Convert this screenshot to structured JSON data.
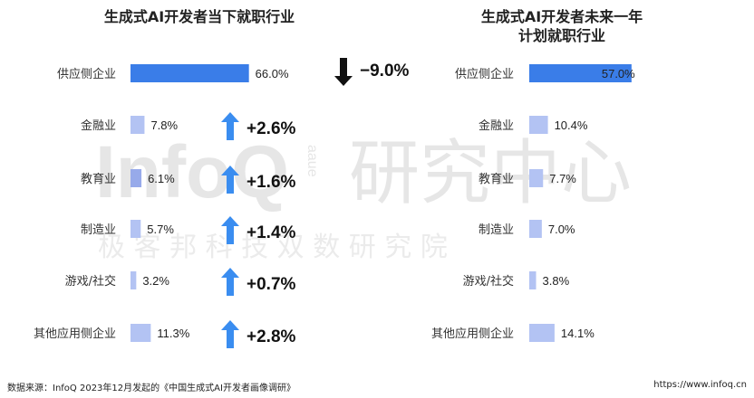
{
  "chart_data": [
    {
      "type": "bar",
      "title": "生成式AI开发者当下就职行业",
      "categories": [
        "供应侧企业",
        "金融业",
        "教育业",
        "制造业",
        "游戏/社交",
        "其他应用侧企业"
      ],
      "values": [
        66.0,
        7.8,
        6.1,
        5.7,
        3.2,
        11.3
      ],
      "value_labels": [
        "66.0%",
        "7.8%",
        "6.1%",
        "5.7%",
        "3.2%",
        "11.3%"
      ],
      "change_labels": [
        "−9.0%",
        "+2.6%",
        "+1.6%",
        "+1.4%",
        "+0.7%",
        "+2.8%"
      ],
      "change_direction": [
        "down",
        "up",
        "up",
        "up",
        "up",
        "up"
      ],
      "colors": {
        "highlight": "#3a7de8",
        "bar": "#b3c3f3",
        "bar_mid": "#97aaea",
        "arrow_up": "#3a8df0",
        "arrow_down": "#111111"
      }
    },
    {
      "type": "bar",
      "title": "生成式AI开发者未来一年计划就职行业",
      "categories": [
        "供应侧企业",
        "金融业",
        "教育业",
        "制造业",
        "游戏/社交",
        "其他应用侧企业"
      ],
      "values": [
        57.0,
        10.4,
        7.7,
        7.0,
        3.8,
        14.1
      ],
      "value_labels": [
        "57.0%",
        "10.4%",
        "7.7%",
        "7.0%",
        "3.8%",
        "14.1%"
      ],
      "colors": {
        "highlight": "#3a7de8",
        "bar": "#b3c3f3"
      }
    }
  ],
  "titles": {
    "left_line1": "生成式AI开发者当下就职行业",
    "right_line1": "生成式AI开发者未来一年",
    "right_line2": "计划就职行业"
  },
  "watermark": {
    "logo": "InfoQ",
    "sub": "aaue",
    "big": "研究中心",
    "small": "极 客 邦 科 技 双 数 研 究 院"
  },
  "footer": {
    "source": "数据来源：InfoQ 2023年12月发起的《中国生成式AI开发者画像调研》",
    "url": "https://www.infoq.cn"
  }
}
